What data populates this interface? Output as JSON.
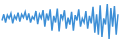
{
  "chart_data": {
    "type": "line",
    "color": "#3d8fd6",
    "ylim": [
      0,
      100
    ],
    "tick_labels": false,
    "grid": false,
    "values": [
      55,
      70,
      50,
      68,
      60,
      72,
      48,
      66,
      58,
      74,
      52,
      70,
      62,
      76,
      56,
      72,
      50,
      64,
      58,
      78,
      46,
      70,
      60,
      80,
      40,
      72,
      55,
      82,
      30,
      66,
      50,
      84,
      28,
      70,
      58,
      80,
      35,
      62,
      45,
      76,
      30,
      68,
      55,
      82,
      40,
      60,
      50,
      78,
      35,
      66,
      48,
      88,
      25,
      70,
      20,
      92,
      15,
      60,
      45,
      95,
      10,
      85,
      40,
      90,
      20,
      70
    ]
  }
}
